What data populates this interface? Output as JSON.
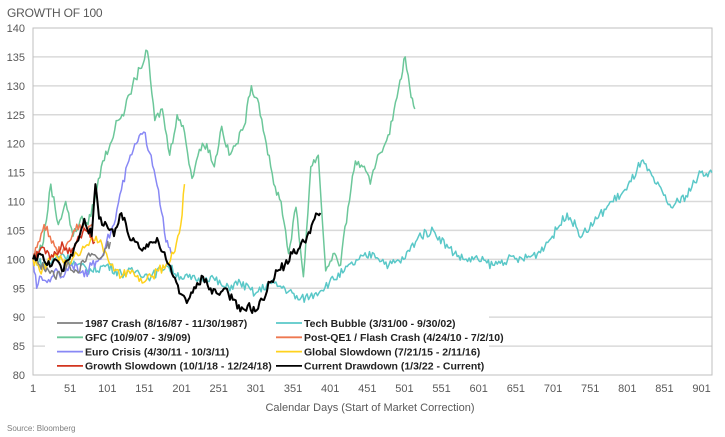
{
  "chart_data": {
    "type": "line",
    "title": "GROWTH OF 100",
    "xlabel": "Calendar Days (Start of Market Correction)",
    "ylabel": "",
    "source": "Source: Bloomberg",
    "xlim": [
      1,
      915
    ],
    "ylim": [
      80,
      140
    ],
    "yticks": [
      "80",
      "85",
      "90",
      "95",
      "100",
      "105",
      "110",
      "115",
      "120",
      "125",
      "130",
      "135",
      "140"
    ],
    "xticks": [
      "1",
      "51",
      "101",
      "151",
      "201",
      "251",
      "301",
      "351",
      "401",
      "451",
      "501",
      "551",
      "601",
      "651",
      "701",
      "751",
      "801",
      "851",
      "901"
    ],
    "grid": "horizontal",
    "legend_position": "bottom-left",
    "series": [
      {
        "name": "1987 Crash (8/16/87 - 11/30/1987)",
        "color": "#7f7f7f",
        "points": [
          [
            1,
            100
          ],
          [
            10,
            99
          ],
          [
            20,
            98.5
          ],
          [
            30,
            97
          ],
          [
            40,
            98
          ],
          [
            50,
            99
          ],
          [
            60,
            98
          ],
          [
            70,
            99.5
          ],
          [
            80,
            101
          ],
          [
            90,
            100
          ],
          [
            100,
            102
          ],
          [
            105,
            103
          ]
        ]
      },
      {
        "name": "Tech Bubble (3/31/00 - 9/30/02)",
        "color": "#5ac8c8",
        "points": [
          [
            1,
            100
          ],
          [
            20,
            99
          ],
          [
            40,
            101
          ],
          [
            60,
            99
          ],
          [
            80,
            98
          ],
          [
            100,
            99
          ],
          [
            120,
            97.5
          ],
          [
            140,
            98
          ],
          [
            160,
            97
          ],
          [
            180,
            99
          ],
          [
            200,
            97
          ],
          [
            220,
            96.5
          ],
          [
            240,
            97
          ],
          [
            260,
            95
          ],
          [
            280,
            96
          ],
          [
            300,
            94
          ],
          [
            320,
            96
          ],
          [
            340,
            95
          ],
          [
            360,
            93
          ],
          [
            380,
            94
          ],
          [
            400,
            96
          ],
          [
            420,
            98
          ],
          [
            440,
            100
          ],
          [
            460,
            101
          ],
          [
            480,
            99
          ],
          [
            500,
            100
          ],
          [
            520,
            104
          ],
          [
            540,
            105
          ],
          [
            560,
            102
          ],
          [
            580,
            100
          ],
          [
            600,
            100
          ],
          [
            620,
            99
          ],
          [
            640,
            100
          ],
          [
            660,
            100
          ],
          [
            680,
            101
          ],
          [
            700,
            104
          ],
          [
            720,
            108
          ],
          [
            740,
            104
          ],
          [
            760,
            107
          ],
          [
            780,
            110
          ],
          [
            800,
            112
          ],
          [
            820,
            117
          ],
          [
            840,
            113
          ],
          [
            860,
            109
          ],
          [
            880,
            111
          ],
          [
            900,
            115
          ],
          [
            915,
            115
          ]
        ]
      },
      {
        "name": "GFC (10/9/07 - 3/9/09)",
        "color": "#6cc79a",
        "points": [
          [
            1,
            100
          ],
          [
            15,
            103
          ],
          [
            25,
            113
          ],
          [
            35,
            106
          ],
          [
            45,
            110
          ],
          [
            55,
            104
          ],
          [
            65,
            107
          ],
          [
            75,
            106
          ],
          [
            85,
            111
          ],
          [
            95,
            117
          ],
          [
            105,
            120
          ],
          [
            115,
            124
          ],
          [
            125,
            126
          ],
          [
            135,
            130
          ],
          [
            145,
            133
          ],
          [
            155,
            136
          ],
          [
            165,
            124
          ],
          [
            175,
            126
          ],
          [
            185,
            118
          ],
          [
            195,
            125
          ],
          [
            205,
            122
          ],
          [
            215,
            114
          ],
          [
            225,
            119
          ],
          [
            235,
            120
          ],
          [
            245,
            116
          ],
          [
            255,
            123
          ],
          [
            265,
            118
          ],
          [
            275,
            120
          ],
          [
            285,
            123
          ],
          [
            295,
            130
          ],
          [
            305,
            127
          ],
          [
            315,
            120
          ],
          [
            325,
            113
          ],
          [
            335,
            110
          ],
          [
            345,
            101
          ],
          [
            355,
            109
          ],
          [
            365,
            97
          ],
          [
            375,
            116
          ],
          [
            385,
            118
          ],
          [
            395,
            98
          ],
          [
            405,
            101
          ],
          [
            415,
            99
          ],
          [
            425,
            109
          ],
          [
            435,
            117
          ],
          [
            445,
            116
          ],
          [
            455,
            113
          ],
          [
            465,
            118
          ],
          [
            475,
            120
          ],
          [
            485,
            124
          ],
          [
            495,
            131
          ],
          [
            502,
            135
          ],
          [
            510,
            128
          ],
          [
            515,
            126
          ]
        ]
      },
      {
        "name": "Post-QE1 / Flash Crash (4/24/10 - 7/2/10)",
        "color": "#ee7850",
        "points": [
          [
            1,
            100
          ],
          [
            8,
            103
          ],
          [
            16,
            106
          ],
          [
            24,
            104
          ],
          [
            32,
            102
          ],
          [
            40,
            101
          ],
          [
            48,
            103
          ],
          [
            56,
            105
          ],
          [
            64,
            106
          ],
          [
            72,
            105
          ],
          [
            80,
            106
          ]
        ]
      },
      {
        "name": "Euro Crisis (4/30/11 - 10/3/11)",
        "color": "#8888f5",
        "points": [
          [
            1,
            100
          ],
          [
            6,
            95
          ],
          [
            12,
            97
          ],
          [
            20,
            96
          ],
          [
            30,
            98
          ],
          [
            40,
            97
          ],
          [
            50,
            99
          ],
          [
            60,
            99
          ],
          [
            70,
            97
          ],
          [
            80,
            99
          ],
          [
            90,
            100
          ],
          [
            100,
            103
          ],
          [
            110,
            106
          ],
          [
            120,
            112
          ],
          [
            130,
            117
          ],
          [
            140,
            120
          ],
          [
            150,
            122
          ],
          [
            160,
            118
          ],
          [
            170,
            112
          ],
          [
            180,
            103
          ],
          [
            187,
            101
          ]
        ]
      },
      {
        "name": "Global Slowdown (7/21/15 - 2/11/16)",
        "color": "#ffd21e",
        "points": [
          [
            1,
            100
          ],
          [
            10,
            98
          ],
          [
            20,
            99
          ],
          [
            30,
            101
          ],
          [
            40,
            100
          ],
          [
            50,
            99
          ],
          [
            60,
            101
          ],
          [
            70,
            102
          ],
          [
            80,
            104
          ],
          [
            90,
            103
          ],
          [
            100,
            101
          ],
          [
            110,
            98
          ],
          [
            120,
            97
          ],
          [
            130,
            98
          ],
          [
            140,
            97
          ],
          [
            150,
            96
          ],
          [
            160,
            97
          ],
          [
            170,
            98
          ],
          [
            180,
            99
          ],
          [
            190,
            101
          ],
          [
            200,
            106
          ],
          [
            205,
            113
          ]
        ]
      },
      {
        "name": "Growth Slowdown (10/1/18 - 12/24/18)",
        "color": "#d2341e",
        "points": [
          [
            1,
            100
          ],
          [
            8,
            101
          ],
          [
            16,
            102
          ],
          [
            24,
            100
          ],
          [
            32,
            101
          ],
          [
            40,
            103
          ],
          [
            48,
            101
          ],
          [
            56,
            102
          ],
          [
            64,
            104
          ],
          [
            72,
            105
          ],
          [
            80,
            104
          ],
          [
            84,
            103
          ]
        ]
      },
      {
        "name": "Current Drawdown (1/3/22 - Current)",
        "color": "#000000",
        "points": [
          [
            1,
            100
          ],
          [
            10,
            101
          ],
          [
            20,
            99
          ],
          [
            30,
            100
          ],
          [
            40,
            98
          ],
          [
            50,
            100
          ],
          [
            60,
            103
          ],
          [
            70,
            107
          ],
          [
            80,
            104
          ],
          [
            85,
            113
          ],
          [
            90,
            107
          ],
          [
            100,
            106
          ],
          [
            110,
            104
          ],
          [
            120,
            108
          ],
          [
            130,
            104
          ],
          [
            140,
            103
          ],
          [
            150,
            102
          ],
          [
            160,
            103
          ],
          [
            170,
            103
          ],
          [
            180,
            100
          ],
          [
            190,
            97
          ],
          [
            200,
            94
          ],
          [
            210,
            93
          ],
          [
            220,
            95
          ],
          [
            230,
            97
          ],
          [
            240,
            95
          ],
          [
            250,
            94
          ],
          [
            260,
            95
          ],
          [
            270,
            93
          ],
          [
            280,
            91
          ],
          [
            290,
            92
          ],
          [
            300,
            91
          ],
          [
            310,
            93
          ],
          [
            320,
            96
          ],
          [
            330,
            98
          ],
          [
            340,
            99
          ],
          [
            350,
            101
          ],
          [
            360,
            102
          ],
          [
            370,
            104
          ],
          [
            380,
            107
          ],
          [
            388,
            108
          ]
        ]
      }
    ]
  }
}
